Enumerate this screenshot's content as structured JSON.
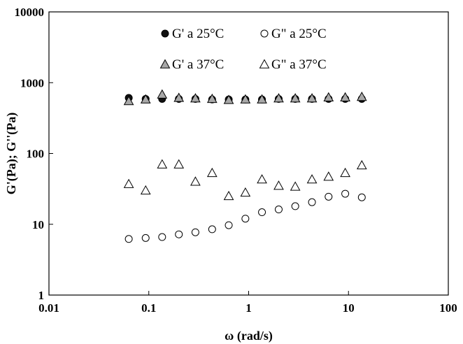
{
  "chart_data": {
    "type": "scatter",
    "title": "",
    "xlabel": "ω (rad/s)",
    "ylabel": "G'(Pa); G''(Pa)",
    "xscale": "log",
    "yscale": "log",
    "xlim": [
      0.01,
      100
    ],
    "ylim": [
      1,
      10000
    ],
    "grid": false,
    "legend_placement": "top-center",
    "x_ticks": [
      {
        "value": 0.01,
        "label": "0.01"
      },
      {
        "value": 0.1,
        "label": "0.1"
      },
      {
        "value": 1,
        "label": "1"
      },
      {
        "value": 10,
        "label": "10"
      },
      {
        "value": 100,
        "label": "100"
      }
    ],
    "y_ticks": [
      {
        "value": 1,
        "label": "1"
      },
      {
        "value": 10,
        "label": "10"
      },
      {
        "value": 100,
        "label": "100"
      },
      {
        "value": 1000,
        "label": "1000"
      },
      {
        "value": 10000,
        "label": "10000"
      }
    ],
    "x": [
      0.063,
      0.093,
      0.136,
      0.2,
      0.293,
      0.431,
      0.632,
      0.928,
      1.36,
      2.0,
      2.93,
      4.31,
      6.32,
      9.28,
      13.6
    ],
    "series": [
      {
        "name": "G' a 25°C",
        "marker": "circle",
        "fill": "#111111",
        "values": [
          610,
          590,
          590,
          590,
          590,
          580,
          580,
          580,
          580,
          590,
          590,
          590,
          590,
          590,
          590
        ]
      },
      {
        "name": "G\" a 25°C",
        "marker": "circle",
        "fill": "#ffffff",
        "values": [
          6.2,
          6.4,
          6.6,
          7.2,
          7.7,
          8.5,
          9.7,
          12,
          14.8,
          16.2,
          18,
          20.5,
          24.5,
          27,
          24
        ]
      },
      {
        "name": "G' a 37°C",
        "marker": "triangle",
        "fill": "#a8a8a8",
        "values": [
          550,
          580,
          680,
          610,
          600,
          590,
          570,
          580,
          580,
          600,
          600,
          600,
          620,
          620,
          630
        ]
      },
      {
        "name": "G\" a 37°C",
        "marker": "triangle",
        "fill": "#ffffff",
        "values": [
          37,
          30,
          70,
          70,
          40,
          53,
          25,
          28,
          43,
          35,
          34,
          43,
          47,
          53,
          68
        ]
      }
    ]
  }
}
